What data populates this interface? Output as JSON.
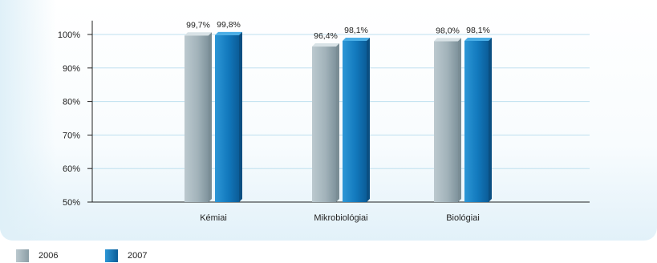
{
  "chart_data": {
    "type": "bar",
    "categories": [
      "Kémiai",
      "Mikrobiológiai",
      "Biológiai"
    ],
    "series": [
      {
        "name": "2006",
        "values": [
          99.7,
          96.4,
          98.0
        ],
        "labels": [
          "99,7%",
          "96,4%",
          "98,0%"
        ],
        "color": "#a6b6bd"
      },
      {
        "name": "2007",
        "values": [
          99.8,
          98.1,
          98.1
        ],
        "labels": [
          "99,8%",
          "98,1%",
          "98,1%"
        ],
        "color": "#1b7fc1"
      }
    ],
    "yticks": [
      50,
      60,
      70,
      80,
      90,
      100
    ],
    "ytick_labels": [
      "50%",
      "60%",
      "70%",
      "80%",
      "90%",
      "100%"
    ],
    "ylim": [
      50,
      102.2
    ],
    "grid": true,
    "legend": "bottom-left"
  },
  "legend": {
    "items": [
      {
        "label": "2006",
        "color": "#a6b6bd"
      },
      {
        "label": "2007",
        "color": "#1b7fc1"
      }
    ]
  }
}
